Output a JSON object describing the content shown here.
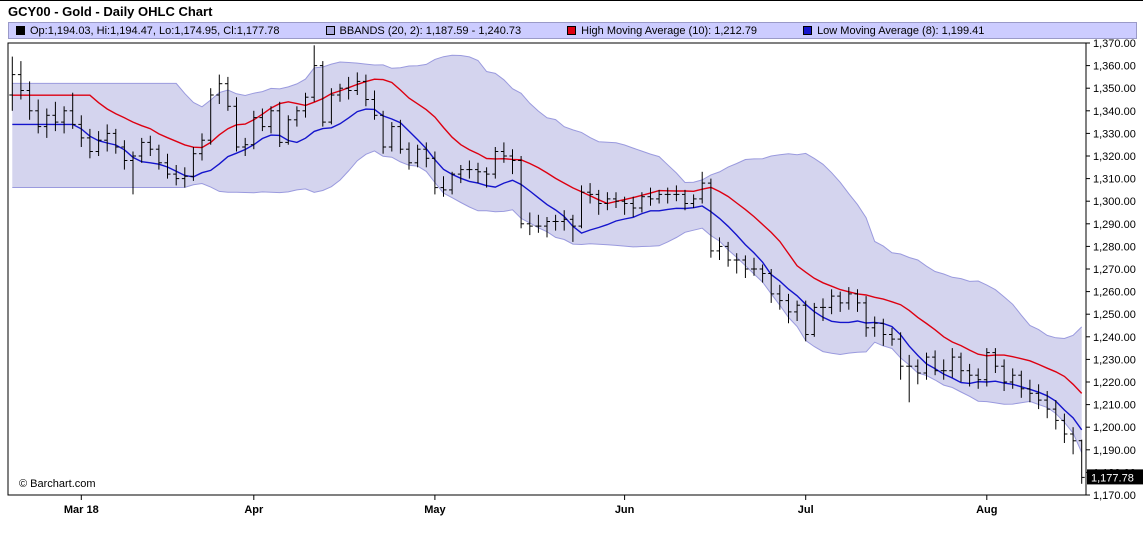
{
  "header": {
    "title": "GCY00 - Gold - Daily OHLC Chart"
  },
  "legend": {
    "background": "#ccccff",
    "items": [
      {
        "name": "ohlc",
        "swatch": "#000000",
        "label": "Op:1,194.03, Hi:1,194.47, Lo:1,174.95, Cl:1,177.78"
      },
      {
        "name": "bbands",
        "swatch": "#aaaadd",
        "label": "BBANDS (20, 2): 1,187.59 - 1,240.73"
      },
      {
        "name": "high-ma",
        "swatch": "#dd0011",
        "label": "High Moving Average (10): 1,212.79"
      },
      {
        "name": "low-ma",
        "swatch": "#1414cc",
        "label": "Low Moving Average (8): 1,199.41"
      }
    ]
  },
  "watermark": "© Barchart.com",
  "last_price": {
    "value": 1177.78,
    "label": "1,177.78"
  },
  "chart_data": {
    "type": "ohlc",
    "title": "GCY00 - Gold - Daily OHLC Chart",
    "symbol": "GCY00",
    "ylim": [
      1170,
      1370
    ],
    "y_tick_step": 10,
    "grid": false,
    "legend_position": "top",
    "x_ticks": [
      {
        "i": 8,
        "label": "Mar 18"
      },
      {
        "i": 28,
        "label": "Apr"
      },
      {
        "i": 49,
        "label": "May"
      },
      {
        "i": 71,
        "label": "Jun"
      },
      {
        "i": 92,
        "label": "Jul"
      },
      {
        "i": 113,
        "label": "Aug"
      }
    ],
    "columns": [
      "open",
      "high",
      "low",
      "close"
    ],
    "bars": [
      [
        1347,
        1364,
        1340,
        1356
      ],
      [
        1356,
        1362,
        1345,
        1349
      ],
      [
        1349,
        1353,
        1336,
        1340
      ],
      [
        1340,
        1345,
        1330,
        1333
      ],
      [
        1333,
        1341,
        1328,
        1338
      ],
      [
        1338,
        1344,
        1331,
        1335
      ],
      [
        1335,
        1342,
        1330,
        1340
      ],
      [
        1340,
        1348,
        1332,
        1334
      ],
      [
        1334,
        1338,
        1324,
        1328
      ],
      [
        1328,
        1332,
        1319,
        1322
      ],
      [
        1322,
        1331,
        1320,
        1327
      ],
      [
        1327,
        1334,
        1322,
        1330
      ],
      [
        1330,
        1332,
        1321,
        1324
      ],
      [
        1324,
        1327,
        1314,
        1318
      ],
      [
        1318,
        1322,
        1303,
        1320
      ],
      [
        1320,
        1328,
        1317,
        1326
      ],
      [
        1326,
        1329,
        1320,
        1323
      ],
      [
        1323,
        1325,
        1314,
        1317
      ],
      [
        1317,
        1321,
        1310,
        1312
      ],
      [
        1312,
        1316,
        1307,
        1310
      ],
      [
        1310,
        1315,
        1306,
        1311
      ],
      [
        1311,
        1324,
        1309,
        1321
      ],
      [
        1321,
        1330,
        1318,
        1327
      ],
      [
        1327,
        1350,
        1325,
        1347
      ],
      [
        1347,
        1356,
        1343,
        1352
      ],
      [
        1352,
        1355,
        1340,
        1342
      ],
      [
        1342,
        1346,
        1322,
        1324
      ],
      [
        1324,
        1328,
        1320,
        1325
      ],
      [
        1325,
        1340,
        1323,
        1337
      ],
      [
        1337,
        1341,
        1331,
        1333
      ],
      [
        1333,
        1342,
        1330,
        1340
      ],
      [
        1340,
        1344,
        1324,
        1326
      ],
      [
        1326,
        1338,
        1325,
        1336
      ],
      [
        1336,
        1342,
        1333,
        1340
      ],
      [
        1340,
        1348,
        1337,
        1346
      ],
      [
        1346,
        1369,
        1344,
        1360
      ],
      [
        1360,
        1362,
        1333,
        1335
      ],
      [
        1335,
        1350,
        1334,
        1347
      ],
      [
        1347,
        1352,
        1344,
        1350
      ],
      [
        1350,
        1355,
        1345,
        1349
      ],
      [
        1349,
        1357,
        1347,
        1353
      ],
      [
        1353,
        1356,
        1342,
        1345
      ],
      [
        1345,
        1349,
        1336,
        1338
      ],
      [
        1338,
        1340,
        1321,
        1324
      ],
      [
        1324,
        1335,
        1322,
        1333
      ],
      [
        1333,
        1336,
        1321,
        1323
      ],
      [
        1323,
        1326,
        1314,
        1317
      ],
      [
        1317,
        1325,
        1315,
        1323
      ],
      [
        1323,
        1326,
        1315,
        1319
      ],
      [
        1319,
        1322,
        1303,
        1306
      ],
      [
        1306,
        1311,
        1302,
        1305
      ],
      [
        1305,
        1313,
        1303,
        1312
      ],
      [
        1312,
        1316,
        1308,
        1314
      ],
      [
        1314,
        1318,
        1310,
        1314
      ],
      [
        1314,
        1317,
        1308,
        1313
      ],
      [
        1313,
        1315,
        1306,
        1312
      ],
      [
        1312,
        1324,
        1310,
        1322
      ],
      [
        1322,
        1326,
        1317,
        1320
      ],
      [
        1320,
        1323,
        1312,
        1318
      ],
      [
        1318,
        1320,
        1288,
        1290
      ],
      [
        1290,
        1295,
        1285,
        1289
      ],
      [
        1289,
        1294,
        1286,
        1289
      ],
      [
        1289,
        1293,
        1284,
        1291
      ],
      [
        1291,
        1294,
        1287,
        1291
      ],
      [
        1291,
        1296,
        1287,
        1292
      ],
      [
        1292,
        1294,
        1282,
        1289
      ],
      [
        1289,
        1307,
        1288,
        1304
      ],
      [
        1304,
        1308,
        1299,
        1303
      ],
      [
        1303,
        1305,
        1294,
        1299
      ],
      [
        1299,
        1304,
        1296,
        1301
      ],
      [
        1301,
        1304,
        1297,
        1300
      ],
      [
        1300,
        1302,
        1294,
        1299
      ],
      [
        1299,
        1302,
        1293,
        1297
      ],
      [
        1297,
        1304,
        1295,
        1302
      ],
      [
        1302,
        1306,
        1298,
        1301
      ],
      [
        1301,
        1305,
        1299,
        1303
      ],
      [
        1303,
        1306,
        1299,
        1303
      ],
      [
        1303,
        1307,
        1300,
        1303
      ],
      [
        1303,
        1305,
        1296,
        1299
      ],
      [
        1299,
        1303,
        1297,
        1301
      ],
      [
        1301,
        1313,
        1299,
        1308
      ],
      [
        1308,
        1310,
        1275,
        1278
      ],
      [
        1278,
        1284,
        1274,
        1280
      ],
      [
        1280,
        1282,
        1271,
        1274
      ],
      [
        1274,
        1277,
        1268,
        1274
      ],
      [
        1274,
        1276,
        1266,
        1270
      ],
      [
        1270,
        1275,
        1267,
        1270
      ],
      [
        1270,
        1272,
        1264,
        1268
      ],
      [
        1268,
        1270,
        1255,
        1259
      ],
      [
        1259,
        1263,
        1252,
        1256
      ],
      [
        1256,
        1259,
        1246,
        1251
      ],
      [
        1251,
        1256,
        1247,
        1254
      ],
      [
        1254,
        1256,
        1238,
        1241
      ],
      [
        1241,
        1255,
        1240,
        1253
      ],
      [
        1253,
        1257,
        1247,
        1253
      ],
      [
        1253,
        1261,
        1250,
        1258
      ],
      [
        1258,
        1260,
        1251,
        1255
      ],
      [
        1255,
        1262,
        1252,
        1259
      ],
      [
        1259,
        1261,
        1251,
        1255
      ],
      [
        1255,
        1258,
        1240,
        1244
      ],
      [
        1244,
        1249,
        1240,
        1246
      ],
      [
        1246,
        1248,
        1236,
        1241
      ],
      [
        1241,
        1244,
        1236,
        1239
      ],
      [
        1239,
        1242,
        1221,
        1227
      ],
      [
        1227,
        1232,
        1211,
        1227
      ],
      [
        1227,
        1230,
        1219,
        1224
      ],
      [
        1224,
        1233,
        1221,
        1231
      ],
      [
        1231,
        1234,
        1223,
        1225
      ],
      [
        1225,
        1230,
        1221,
        1225
      ],
      [
        1225,
        1235,
        1222,
        1231
      ],
      [
        1231,
        1233,
        1220,
        1225
      ],
      [
        1225,
        1228,
        1218,
        1223
      ],
      [
        1223,
        1226,
        1217,
        1221
      ],
      [
        1221,
        1235,
        1218,
        1233
      ],
      [
        1233,
        1235,
        1224,
        1227
      ],
      [
        1227,
        1230,
        1216,
        1220
      ],
      [
        1220,
        1226,
        1217,
        1223
      ],
      [
        1223,
        1225,
        1213,
        1217
      ],
      [
        1217,
        1221,
        1211,
        1215
      ],
      [
        1215,
        1219,
        1208,
        1212
      ],
      [
        1212,
        1216,
        1204,
        1208
      ],
      [
        1208,
        1212,
        1199,
        1203
      ],
      [
        1203,
        1206,
        1193,
        1197
      ],
      [
        1197,
        1200,
        1188,
        1194
      ],
      [
        1194.03,
        1194.47,
        1174.95,
        1177.78
      ]
    ],
    "indicators": {
      "bbands": {
        "period": 20,
        "stddev": 2,
        "line_color": "#9a9ade",
        "fill_color": "rgba(170,170,221,0.5)",
        "current": "1,187.59 - 1,240.73"
      },
      "high_moving_average": {
        "period": 10,
        "source": "high",
        "color": "#dd0011",
        "current": 1212.79
      },
      "low_moving_average": {
        "period": 8,
        "source": "low",
        "color": "#1414cc",
        "current": 1199.41
      }
    }
  }
}
